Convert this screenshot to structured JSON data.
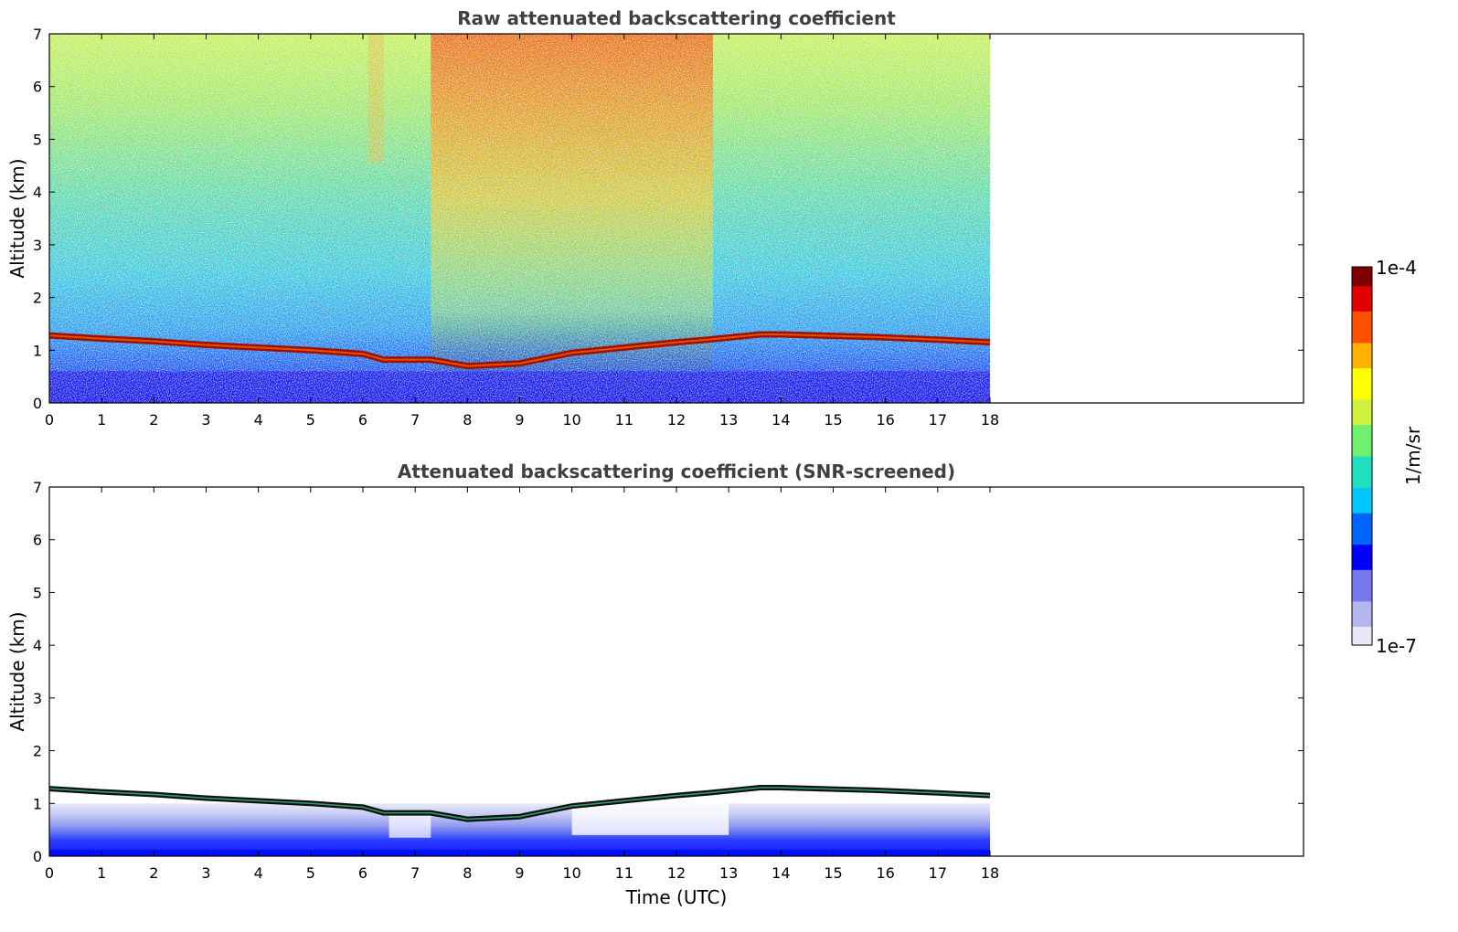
{
  "chart_data": [
    {
      "type": "heatmap",
      "title": "Raw attenuated backscattering coefficient",
      "xlabel": "",
      "ylabel": "Altitude (km)",
      "xlim": [
        0,
        24
      ],
      "ylim": [
        0,
        7
      ],
      "data_time_range": [
        0,
        18
      ],
      "xticks": [
        "0",
        "1",
        "2",
        "3",
        "4",
        "5",
        "6",
        "7",
        "8",
        "9",
        "10",
        "11",
        "12",
        "13",
        "14",
        "15",
        "16",
        "17",
        "18"
      ],
      "yticks": [
        "0",
        "1",
        "2",
        "3",
        "4",
        "5",
        "6",
        "7"
      ],
      "cloud_layer": {
        "time": [
          0,
          1,
          2,
          3,
          4,
          5,
          6,
          6.4,
          7.3,
          8,
          9,
          10,
          11,
          12,
          12.6,
          13.6,
          14,
          15.8,
          17,
          18
        ],
        "altitude_km": [
          1.28,
          1.22,
          1.17,
          1.1,
          1.05,
          1.0,
          0.93,
          0.82,
          0.82,
          0.7,
          0.75,
          0.95,
          1.05,
          1.15,
          1.2,
          1.3,
          1.3,
          1.25,
          1.2,
          1.15
        ]
      }
    },
    {
      "type": "heatmap",
      "title": "Attenuated backscattering coefficient (SNR-screened)",
      "xlabel": "Time (UTC)",
      "ylabel": "Altitude (km)",
      "xlim": [
        0,
        24
      ],
      "ylim": [
        0,
        7
      ],
      "data_time_range": [
        0,
        18
      ],
      "xticks": [
        "0",
        "1",
        "2",
        "3",
        "4",
        "5",
        "6",
        "7",
        "8",
        "9",
        "10",
        "11",
        "12",
        "13",
        "14",
        "15",
        "16",
        "17",
        "18"
      ],
      "yticks": [
        "0",
        "1",
        "2",
        "3",
        "4",
        "5",
        "6",
        "7"
      ]
    }
  ],
  "colorbar": {
    "label": "1/m/sr",
    "max_label": "1e-4",
    "min_label": "1e-7",
    "scale": "log",
    "colors": [
      "#e8e8f8",
      "#b4b4f0",
      "#7878f0",
      "#0000ff",
      "#0064ff",
      "#00c8ff",
      "#20e0c0",
      "#70f070",
      "#d0f040",
      "#ffff00",
      "#ffb000",
      "#ff5000",
      "#e00000",
      "#800000"
    ]
  }
}
